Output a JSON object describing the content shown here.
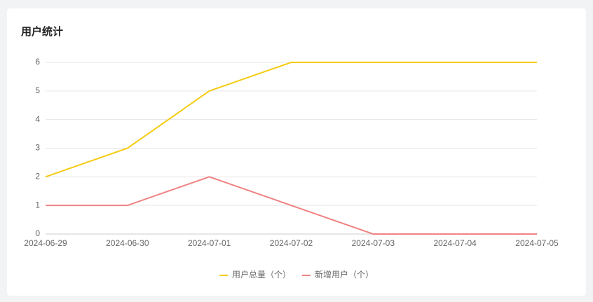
{
  "chart_data": {
    "type": "line",
    "title": "用户统计",
    "categories": [
      "2024-06-29",
      "2024-06-30",
      "2024-07-01",
      "2024-07-02",
      "2024-07-03",
      "2024-07-04",
      "2024-07-05"
    ],
    "series": [
      {
        "name": "用户总量（个）",
        "color": "#f5cc14",
        "values": [
          2,
          3,
          5,
          6,
          6,
          6,
          6
        ]
      },
      {
        "name": "新增用户（个）",
        "color": "#f08383",
        "values": [
          1,
          1,
          2,
          1,
          0,
          0,
          0
        ]
      }
    ],
    "ylim": [
      0,
      6
    ],
    "yticks": [
      0,
      1,
      2,
      3,
      4,
      5,
      6
    ],
    "grid": true,
    "legend": "bottom"
  }
}
